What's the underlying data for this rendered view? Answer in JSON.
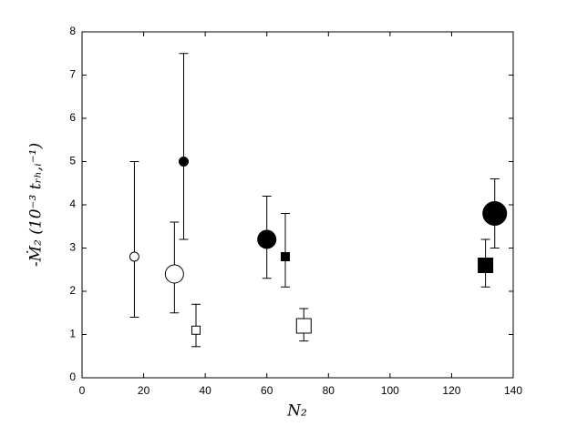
{
  "chart_data": {
    "type": "scatter",
    "x_label": "N₂",
    "y_label": "-Ṁ₂ (10⁻³ tᵣₕ,ᵢ⁻¹)",
    "x": [
      17,
      30,
      33,
      37,
      60,
      66,
      72,
      131,
      134
    ],
    "values": [
      2.8,
      2.4,
      5.0,
      1.1,
      3.2,
      2.8,
      1.2,
      2.6,
      3.8
    ],
    "yerr_lower": [
      1.4,
      1.5,
      3.2,
      0.72,
      2.3,
      2.1,
      0.85,
      2.1,
      3.0
    ],
    "yerr_upper": [
      5.0,
      3.6,
      7.5,
      1.7,
      4.2,
      3.8,
      1.6,
      3.2,
      4.6
    ],
    "markers": [
      "circle",
      "circle",
      "circle",
      "square",
      "circle",
      "square",
      "square",
      "square",
      "circle"
    ],
    "filled": [
      false,
      false,
      true,
      false,
      true,
      true,
      false,
      true,
      true
    ],
    "color": "#000000",
    "xlim": [
      0,
      140
    ],
    "xticks": [
      0,
      20,
      40,
      60,
      80,
      100,
      120,
      140
    ],
    "ylim": [
      0,
      8
    ],
    "yticks": [
      0,
      1,
      2,
      3,
      4,
      5,
      6,
      7,
      8
    ]
  }
}
